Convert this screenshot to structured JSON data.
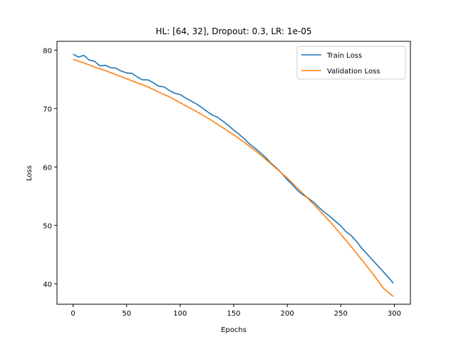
{
  "chart_data": {
    "type": "line",
    "title": "HL: [64, 32], Dropout: 0.3, LR: 1e-05",
    "xlabel": "Epochs",
    "ylabel": "Loss",
    "xlim": [
      -15,
      315
    ],
    "ylim": [
      36.5,
      81.5
    ],
    "xticks": [
      0,
      50,
      100,
      150,
      200,
      250,
      300
    ],
    "yticks": [
      40,
      50,
      60,
      70,
      80
    ],
    "grid": false,
    "legend_position": "top-right",
    "series": [
      {
        "name": "Train Loss",
        "color": "#1f77b4",
        "x": [
          0,
          5,
          10,
          15,
          20,
          25,
          30,
          35,
          40,
          45,
          50,
          55,
          60,
          65,
          70,
          75,
          80,
          85,
          90,
          95,
          100,
          105,
          110,
          115,
          120,
          125,
          130,
          135,
          140,
          145,
          150,
          155,
          160,
          165,
          170,
          175,
          180,
          185,
          190,
          195,
          200,
          205,
          210,
          215,
          220,
          225,
          230,
          235,
          240,
          245,
          250,
          255,
          260,
          265,
          270,
          275,
          280,
          285,
          290,
          295,
          299
        ],
        "y": [
          79.3,
          78.8,
          79.1,
          78.3,
          78.1,
          77.3,
          77.4,
          77.0,
          76.9,
          76.4,
          76.1,
          76.0,
          75.4,
          74.9,
          74.9,
          74.4,
          73.8,
          73.7,
          73.1,
          72.6,
          72.4,
          71.8,
          71.3,
          70.8,
          70.2,
          69.5,
          68.9,
          68.5,
          67.8,
          67.1,
          66.3,
          65.6,
          64.8,
          63.9,
          63.2,
          62.4,
          61.6,
          60.6,
          59.8,
          58.9,
          57.8,
          56.9,
          55.9,
          55.2,
          54.6,
          53.9,
          53.0,
          52.2,
          51.5,
          50.7,
          49.9,
          48.9,
          48.2,
          47.2,
          46.0,
          45.0,
          44.0,
          43.0,
          42.0,
          41.0,
          40.1
        ]
      },
      {
        "name": "Validation Loss",
        "color": "#ff7f0e",
        "x": [
          0,
          10,
          20,
          30,
          40,
          50,
          60,
          70,
          80,
          90,
          100,
          110,
          120,
          130,
          140,
          150,
          160,
          170,
          180,
          190,
          200,
          210,
          220,
          230,
          240,
          250,
          260,
          270,
          280,
          290,
          299
        ],
        "y": [
          78.4,
          77.8,
          77.1,
          76.5,
          75.8,
          75.1,
          74.4,
          73.7,
          72.8,
          72.0,
          71.0,
          70.0,
          69.0,
          67.9,
          66.7,
          65.5,
          64.2,
          62.8,
          61.3,
          59.7,
          58.1,
          56.3,
          54.5,
          52.6,
          50.6,
          48.5,
          46.3,
          44.0,
          41.7,
          39.2,
          37.8
        ]
      }
    ]
  }
}
